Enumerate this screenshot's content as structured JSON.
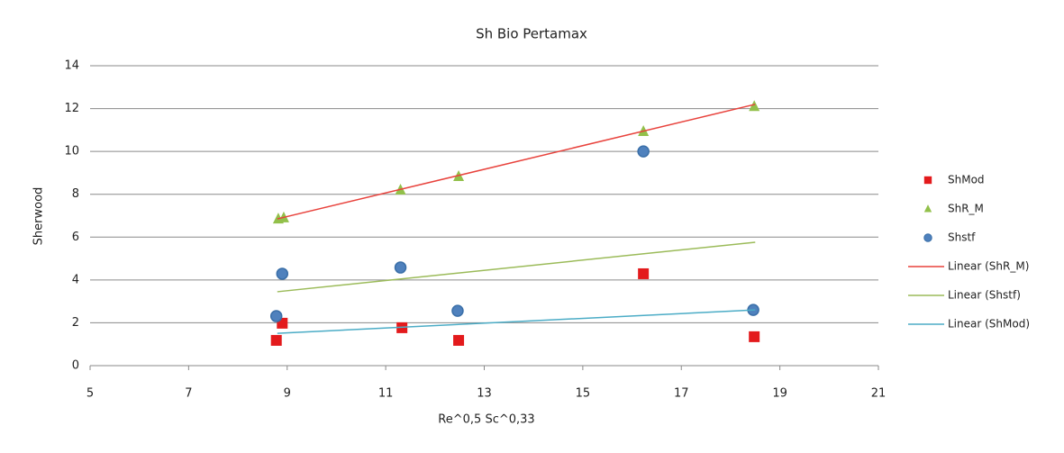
{
  "chart_data": {
    "type": "scatter",
    "title": "Sh Bio Pertamax",
    "x_label": "Re^0,5 Sc^0,33",
    "y_label": "Sherwood",
    "xlim": [
      5,
      21
    ],
    "xticks": [
      5,
      7,
      9,
      11,
      13,
      15,
      17,
      19,
      21
    ],
    "ylim": [
      0,
      14
    ],
    "yticks": [
      0,
      2,
      4,
      6,
      8,
      10,
      12,
      14
    ],
    "grid": true,
    "legend": "right",
    "series": [
      {
        "name": "ShMod",
        "color": "#e31a1c",
        "marker": "square",
        "x": [
          8.78,
          8.9,
          11.33,
          12.48,
          16.23,
          18.48
        ],
        "values": [
          1.18,
          1.98,
          1.77,
          1.18,
          4.29,
          1.35
        ]
      },
      {
        "name": "ShR_M",
        "color": "#92c04a",
        "marker": "triangle",
        "x": [
          8.82,
          8.93,
          11.3,
          12.48,
          16.23,
          18.48
        ],
        "values": [
          6.85,
          6.9,
          8.2,
          8.83,
          10.93,
          12.1
        ]
      },
      {
        "name": "Shstf",
        "color": "#4f81bd",
        "marker": "circle",
        "x": [
          8.78,
          8.9,
          11.3,
          12.46,
          16.23,
          18.46
        ],
        "values": [
          2.31,
          4.29,
          4.58,
          2.56,
          10.0,
          2.6
        ]
      },
      {
        "name": "Linear (ShR_M)",
        "color": "#e8423c",
        "marker": "line",
        "x": [
          8.8,
          18.5
        ],
        "values": [
          6.85,
          12.2
        ]
      },
      {
        "name": "Linear (Shstf)",
        "color": "#9bbb59",
        "marker": "line",
        "x": [
          8.8,
          18.5
        ],
        "values": [
          3.45,
          5.76
        ]
      },
      {
        "name": "Linear (ShMod)",
        "color": "#4bacc6",
        "marker": "line",
        "x": [
          8.8,
          18.5
        ],
        "values": [
          1.51,
          2.6
        ]
      }
    ]
  }
}
